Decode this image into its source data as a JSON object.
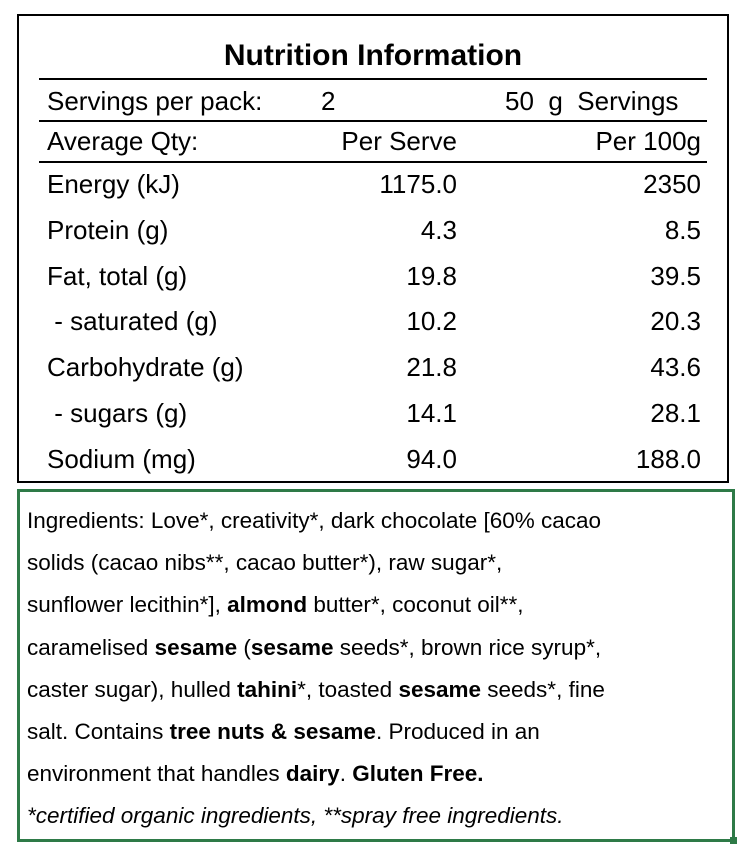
{
  "nutrition": {
    "title": "Nutrition Information",
    "servings_per_pack_label": "Servings per pack:",
    "servings_per_pack_value": "2",
    "serving_size_text": "50  g  Servings",
    "columns": {
      "label": "Average Qty:",
      "per_serve": "Per Serve",
      "per_100g": "Per 100g"
    },
    "rows": [
      {
        "label": "Energy (kJ)",
        "per_serve": "1175.0",
        "per_100g": "2350"
      },
      {
        "label": "Protein (g)",
        "per_serve": "4.3",
        "per_100g": "8.5"
      },
      {
        "label": "Fat, total (g)",
        "per_serve": "19.8",
        "per_100g": "39.5"
      },
      {
        "label": " - saturated (g)",
        "per_serve": "10.2",
        "per_100g": "20.3"
      },
      {
        "label": "Carbohydrate (g)",
        "per_serve": "21.8",
        "per_100g": "43.6"
      },
      {
        "label": " - sugars (g)",
        "per_serve": "14.1",
        "per_100g": "28.1"
      },
      {
        "label": "Sodium (mg)",
        "per_serve": "94.0",
        "per_100g": "188.0"
      }
    ]
  },
  "ingredients": {
    "lines": [
      [
        {
          "text": "Ingredients: Love*, creativity*, dark chocolate [60% cacao"
        }
      ],
      [
        {
          "text": "solids (cacao nibs**, cacao butter*), raw sugar*,"
        }
      ],
      [
        {
          "text": "sunflower lecithin*], "
        },
        {
          "text": "almond",
          "bold": true
        },
        {
          "text": " butter*, coconut oil**,"
        }
      ],
      [
        {
          "text": "caramelised "
        },
        {
          "text": "sesame",
          "bold": true
        },
        {
          "text": " ("
        },
        {
          "text": "sesame",
          "bold": true
        },
        {
          "text": " seeds*, brown rice syrup*,"
        }
      ],
      [
        {
          "text": "caster sugar), hulled "
        },
        {
          "text": "tahini",
          "bold": true
        },
        {
          "text": "*, toasted "
        },
        {
          "text": "sesame",
          "bold": true
        },
        {
          "text": " seeds*, fine"
        }
      ],
      [
        {
          "text": "salt. Contains "
        },
        {
          "text": "tree nuts & sesame",
          "bold": true
        },
        {
          "text": ". Produced in an"
        }
      ],
      [
        {
          "text": "environment that handles "
        },
        {
          "text": "dairy",
          "bold": true
        },
        {
          "text": ". "
        },
        {
          "text": "Gluten Free.",
          "bold": true
        }
      ]
    ],
    "note": "*certified organic ingredients, **spray free ingredients."
  },
  "colors": {
    "ingredients_border": "#2e7a47",
    "text": "#000000"
  }
}
